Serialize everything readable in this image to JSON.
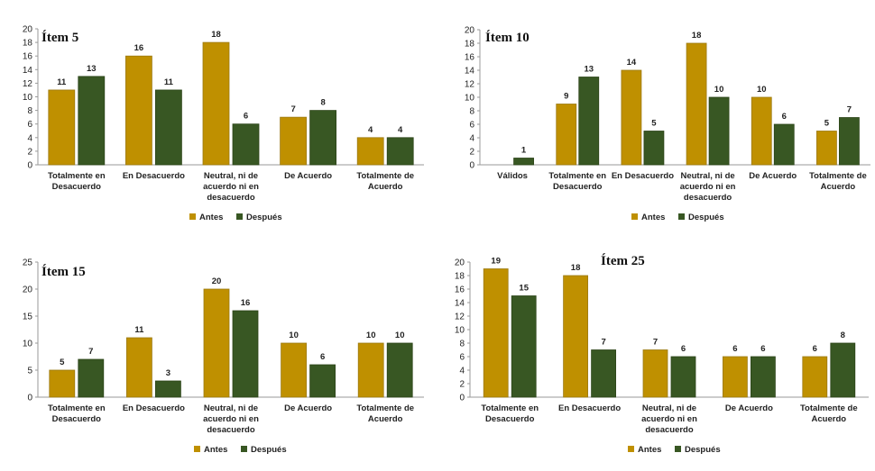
{
  "colors": {
    "antes": "#BF9000",
    "despues": "#385723",
    "axis": "#9a9a9a",
    "text": "#222222"
  },
  "chart_data": [
    {
      "type": "bar",
      "title": "Ítem 5",
      "categories": [
        "Totalmente en Desacuerdo",
        "En Desacuerdo",
        "Neutral, ni de acuerdo ni en desacuerdo",
        "De Acuerdo",
        "Totalmente de Acuerdo"
      ],
      "series": [
        {
          "name": "Antes",
          "values": [
            11,
            16,
            18,
            7,
            4
          ]
        },
        {
          "name": "Después",
          "values": [
            13,
            11,
            6,
            8,
            4
          ]
        }
      ],
      "ylim": [
        0,
        20
      ],
      "ytick_step": 2,
      "legend": "bottom"
    },
    {
      "type": "bar",
      "title": "Ítem 10",
      "categories": [
        "Válidos",
        "Totalmente en Desacuerdo",
        "En Desacuerdo",
        "Neutral, ni de acuerdo ni en desacuerdo",
        "De Acuerdo",
        "Totalmente de Acuerdo"
      ],
      "series": [
        {
          "name": "Antes",
          "values": [
            null,
            9,
            14,
            18,
            10,
            5
          ]
        },
        {
          "name": "Después",
          "values": [
            1,
            13,
            5,
            10,
            6,
            7
          ]
        }
      ],
      "ylim": [
        0,
        20
      ],
      "ytick_step": 2,
      "legend": "bottom"
    },
    {
      "type": "bar",
      "title": "Ítem 15",
      "categories": [
        "Totalmente en Desacuerdo",
        "En Desacuerdo",
        "Neutral, ni de acuerdo ni en desacuerdo",
        "De Acuerdo",
        "Totalmente de Acuerdo"
      ],
      "series": [
        {
          "name": "Antes",
          "values": [
            5,
            11,
            20,
            10,
            10
          ]
        },
        {
          "name": "Después",
          "values": [
            7,
            3,
            16,
            6,
            10
          ]
        }
      ],
      "ylim": [
        0,
        25
      ],
      "ytick_step": 5,
      "legend": "bottom"
    },
    {
      "type": "bar",
      "title": "Ítem 25",
      "categories": [
        "Totalmente en Desacuerdo",
        "En Desacuerdo",
        "Neutral, ni de acuerdo ni en desacuerdo",
        "De Acuerdo",
        "Totalmente de Acuerdo"
      ],
      "series": [
        {
          "name": "Antes",
          "values": [
            19,
            18,
            7,
            6,
            6
          ]
        },
        {
          "name": "Después",
          "values": [
            15,
            7,
            6,
            6,
            8
          ]
        }
      ],
      "ylim": [
        0,
        20
      ],
      "ytick_step": 2,
      "legend": "bottom"
    }
  ]
}
